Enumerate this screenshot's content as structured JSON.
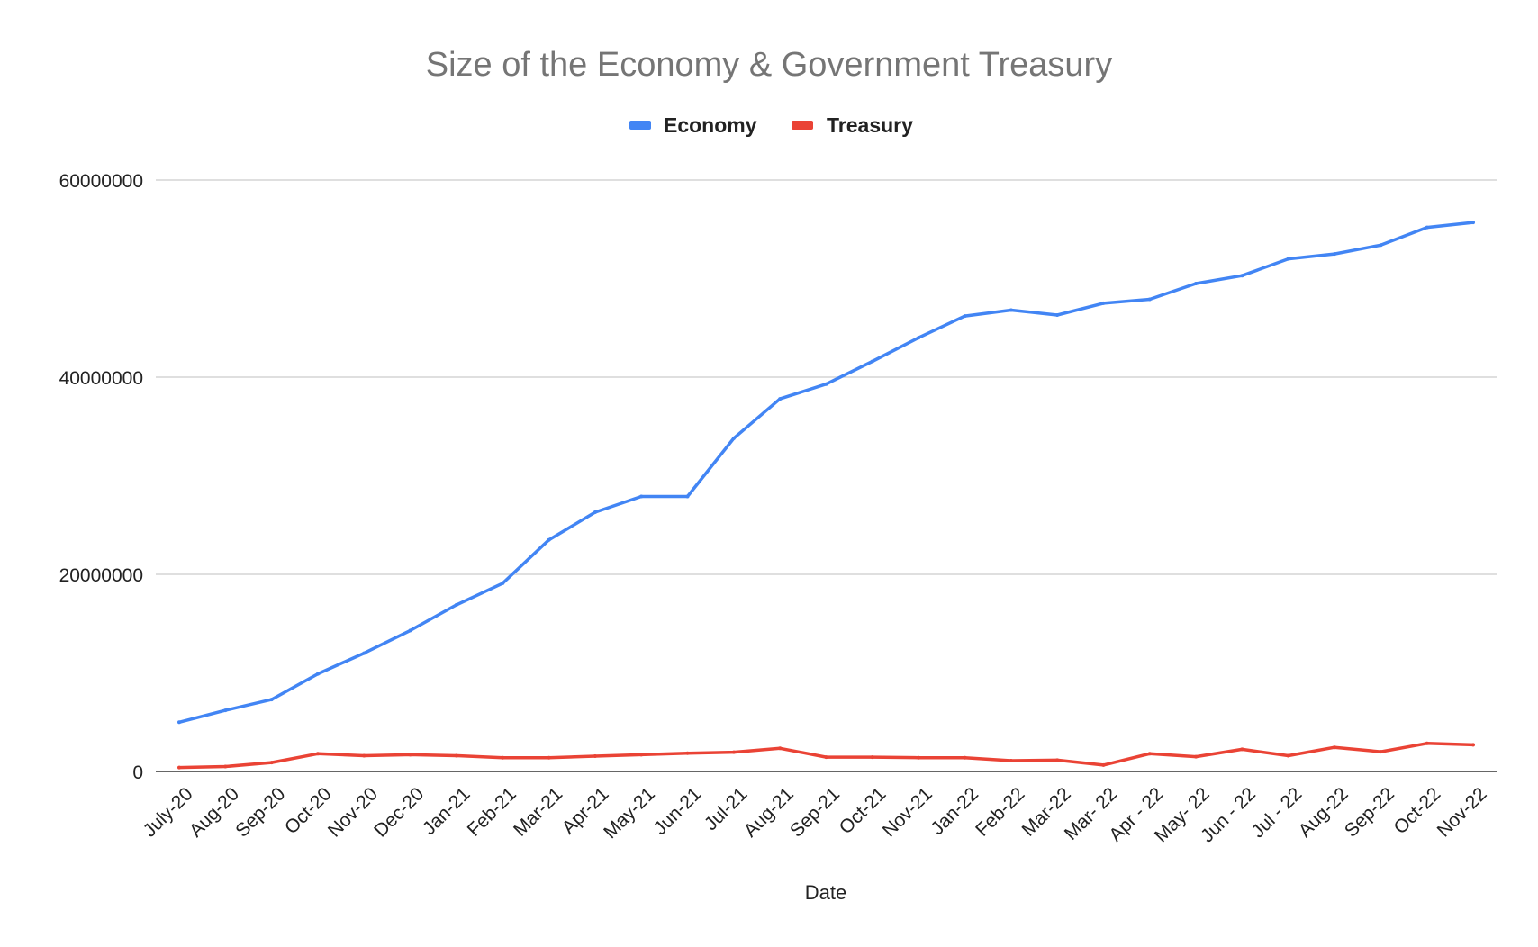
{
  "chart_data": {
    "type": "line",
    "title": "Size of the Economy & Government Treasury",
    "xlabel": "Date",
    "ylabel": "",
    "ylim": [
      0,
      60000000
    ],
    "yticks": [
      "0",
      "20000000",
      "40000000",
      "60000000"
    ],
    "grid": true,
    "legend_position": "top",
    "categories": [
      "July-20",
      "Aug-20",
      "Sep-20",
      "Oct-20",
      "Nov-20",
      "Dec-20",
      "Jan-21",
      "Feb-21",
      "Mar-21",
      "Apr-21",
      "May-21",
      "Jun-21",
      "Jul-21",
      "Aug-21",
      "Sep-21",
      "Oct-21",
      "Nov-21",
      "Jan-22",
      "Feb-22",
      "Mar-22",
      "Mar- 22",
      "Apr - 22",
      "May- 22",
      "Jun - 22",
      "Jul - 22",
      "Aug-22",
      "Sep-22",
      "Oct-22",
      "Nov-22"
    ],
    "series": [
      {
        "name": "Economy",
        "color": "#4285f4",
        "values": [
          5000000,
          6200000,
          7300000,
          9900000,
          12000000,
          14300000,
          16900000,
          19100000,
          23500000,
          26300000,
          27900000,
          27900000,
          33800000,
          37800000,
          39300000,
          41600000,
          44000000,
          46200000,
          46800000,
          46300000,
          47500000,
          47900000,
          49500000,
          50300000,
          52000000,
          52500000,
          53400000,
          55200000,
          55700000
        ]
      },
      {
        "name": "Treasury",
        "color": "#ea4335",
        "values": [
          400000,
          500000,
          900000,
          1800000,
          1600000,
          1700000,
          1600000,
          1400000,
          1400000,
          1550000,
          1700000,
          1850000,
          1950000,
          2350000,
          1450000,
          1450000,
          1400000,
          1400000,
          1100000,
          1150000,
          650000,
          1800000,
          1500000,
          2250000,
          1600000,
          2450000,
          2000000,
          2850000,
          2700000
        ]
      }
    ]
  }
}
